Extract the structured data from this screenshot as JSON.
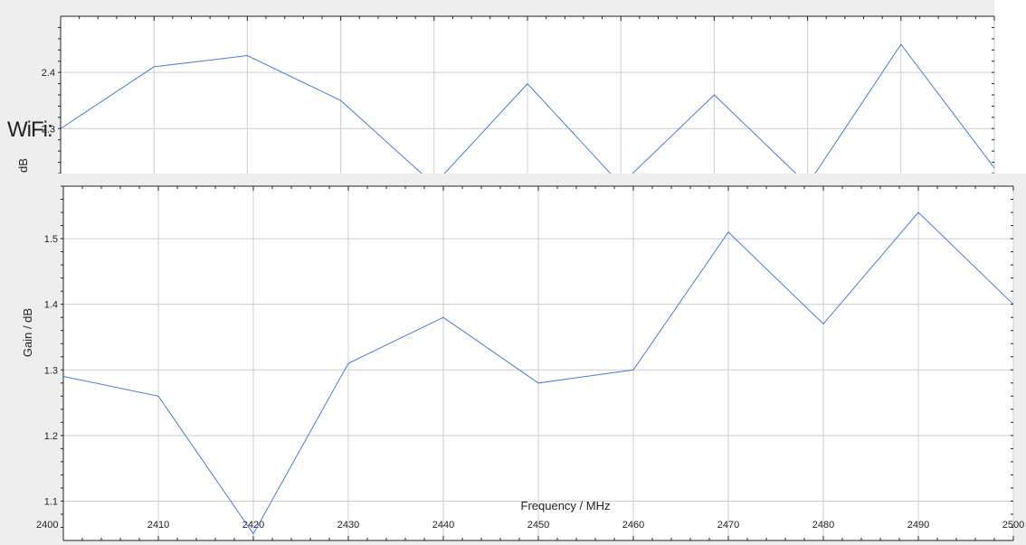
{
  "overlay_text": "WiFi:",
  "chart_data": [
    {
      "type": "line",
      "ylabel": "dB",
      "xlim": [
        2400,
        2500
      ],
      "ylim": [
        2.22,
        2.5
      ],
      "yticks": [
        2.3,
        2.4
      ],
      "ytick_labels": [
        "2.3",
        "2.4"
      ],
      "xticks": [
        2400,
        2410,
        2420,
        2430,
        2440,
        2450,
        2460,
        2470,
        2480,
        2490,
        2500
      ],
      "grid": true,
      "series": [
        {
          "color": "#4a78e0",
          "x": [
            2400,
            2410,
            2420,
            2430,
            2440,
            2450,
            2460,
            2470,
            2480,
            2490,
            2500
          ],
          "y": [
            2.3,
            2.41,
            2.43,
            2.35,
            2.2,
            2.38,
            2.2,
            2.36,
            2.2,
            2.45,
            2.23
          ]
        }
      ]
    },
    {
      "type": "line",
      "xlabel": "Frequency / MHz",
      "ylabel": "Gain / dB",
      "xlim": [
        2400,
        2500
      ],
      "ylim": [
        1.04,
        1.58
      ],
      "yticks": [
        1.1,
        1.2,
        1.3,
        1.4,
        1.5
      ],
      "ytick_labels": [
        "1.1",
        "1.2",
        "1.3",
        "1.4",
        "1.5"
      ],
      "xticks": [
        2400,
        2410,
        2420,
        2430,
        2440,
        2450,
        2460,
        2470,
        2480,
        2490,
        2500
      ],
      "xtick_labels": [
        "2400",
        "2410",
        "2420",
        "2430",
        "2440",
        "2450",
        "2460",
        "2470",
        "2480",
        "2490",
        "2500"
      ],
      "grid": true,
      "series": [
        {
          "color": "#4a78e0",
          "x": [
            2400,
            2410,
            2420,
            2430,
            2440,
            2450,
            2460,
            2470,
            2480,
            2490,
            2500
          ],
          "y": [
            1.29,
            1.26,
            1.05,
            1.31,
            1.38,
            1.28,
            1.3,
            1.51,
            1.37,
            1.54,
            1.4
          ]
        }
      ]
    }
  ]
}
